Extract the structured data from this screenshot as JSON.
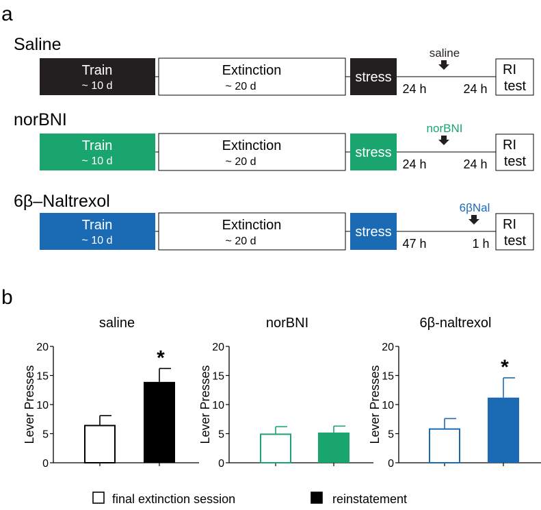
{
  "panel_a": {
    "letter": "a",
    "rows": [
      {
        "title": "Saline",
        "color": "#231f20",
        "train": {
          "label": "Train",
          "sub": "~ 10 d"
        },
        "extinction": {
          "label": "Extinction",
          "sub": "~ 20 d"
        },
        "stress": "stress",
        "drug": {
          "label": "saline",
          "color": "#231f20"
        },
        "interval_left": "24 h",
        "interval_right": "24 h",
        "ri_line1": "RI",
        "ri_line2": "test"
      },
      {
        "title": "norBNI",
        "color": "#1aa46e",
        "train": {
          "label": "Train",
          "sub": "~ 10 d"
        },
        "extinction": {
          "label": "Extinction",
          "sub": "~ 20 d"
        },
        "stress": "stress",
        "drug": {
          "label": "norBNI",
          "color": "#1aa46e"
        },
        "interval_left": "24 h",
        "interval_right": "24 h",
        "ri_line1": "RI",
        "ri_line2": "test"
      },
      {
        "title": "6β–Naltrexol",
        "color": "#1b6bb4",
        "train": {
          "label": "Train",
          "sub": "~ 10 d"
        },
        "extinction": {
          "label": "Extinction",
          "sub": "~ 20 d"
        },
        "stress": "stress",
        "drug": {
          "label": "6βNal",
          "color": "#1b6bb4"
        },
        "interval_left": "47 h",
        "interval_right": "1 h",
        "ri_line1": "RI",
        "ri_line2": "test"
      }
    ]
  },
  "panel_b": {
    "letter": "b",
    "legend": [
      {
        "label": "final extinction session",
        "fill": "#ffffff"
      },
      {
        "label": "reinstatement",
        "fill": "#000000"
      }
    ]
  },
  "chart_data": [
    {
      "type": "bar",
      "title": "saline",
      "ylabel": "Lever Presses",
      "ylim": [
        0,
        20
      ],
      "yticks": [
        0,
        5,
        10,
        15,
        20
      ],
      "categories": [
        "final extinction session",
        "reinstatement"
      ],
      "values": [
        6.4,
        13.9
      ],
      "errors": [
        1.7,
        2.3
      ],
      "color": "#000000",
      "significance": [
        "",
        "*"
      ]
    },
    {
      "type": "bar",
      "title": "norBNI",
      "ylabel": "Lever Presses",
      "ylim": [
        0,
        20
      ],
      "yticks": [
        0,
        5,
        10,
        15,
        20
      ],
      "categories": [
        "final extinction session",
        "reinstatement"
      ],
      "values": [
        4.9,
        5.2
      ],
      "errors": [
        1.3,
        1.1
      ],
      "color": "#1aa46e",
      "significance": [
        "",
        ""
      ]
    },
    {
      "type": "bar",
      "title": "6β-naltrexol",
      "ylabel": "Lever Presses",
      "ylim": [
        0,
        20
      ],
      "yticks": [
        0,
        5,
        10,
        15,
        20
      ],
      "categories": [
        "final extinction session",
        "reinstatement"
      ],
      "values": [
        5.8,
        11.2
      ],
      "errors": [
        1.8,
        3.4
      ],
      "color": "#1b6bb4",
      "significance": [
        "",
        "*"
      ]
    }
  ]
}
